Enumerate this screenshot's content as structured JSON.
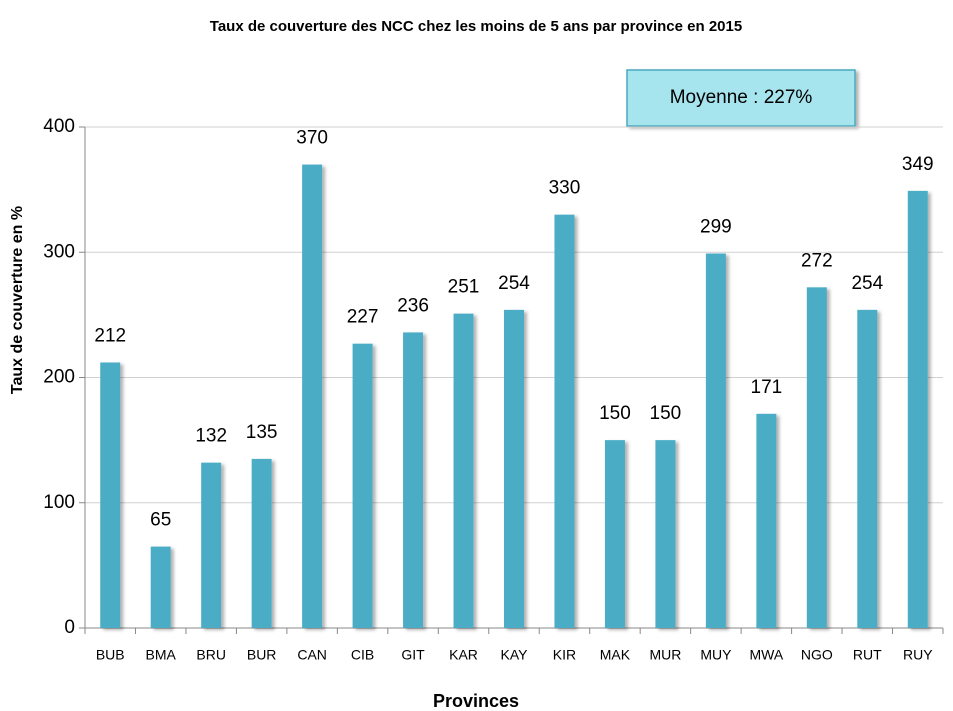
{
  "chart_data": {
    "type": "bar",
    "title": "Taux de couverture des NCC chez les moins de 5 ans par province en 2015",
    "x_label": "Provinces",
    "y_label": "Taux de couverture en %",
    "annotation": "Moyenne : 227%",
    "categories": [
      "BUB",
      "BMA",
      "BRU",
      "BUR",
      "CAN",
      "CIB",
      "GIT",
      "KAR",
      "KAY",
      "KIR",
      "MAK",
      "MUR",
      "MUY",
      "MWA",
      "NGO",
      "RUT",
      "RUY"
    ],
    "values": [
      212,
      65,
      132,
      135,
      370,
      227,
      236,
      251,
      254,
      330,
      150,
      150,
      299,
      171,
      272,
      254,
      349
    ],
    "color": "#4bacc6",
    "ylim": [
      0,
      400
    ],
    "yticks": [
      0,
      100,
      200,
      300,
      400
    ],
    "grid": true
  }
}
